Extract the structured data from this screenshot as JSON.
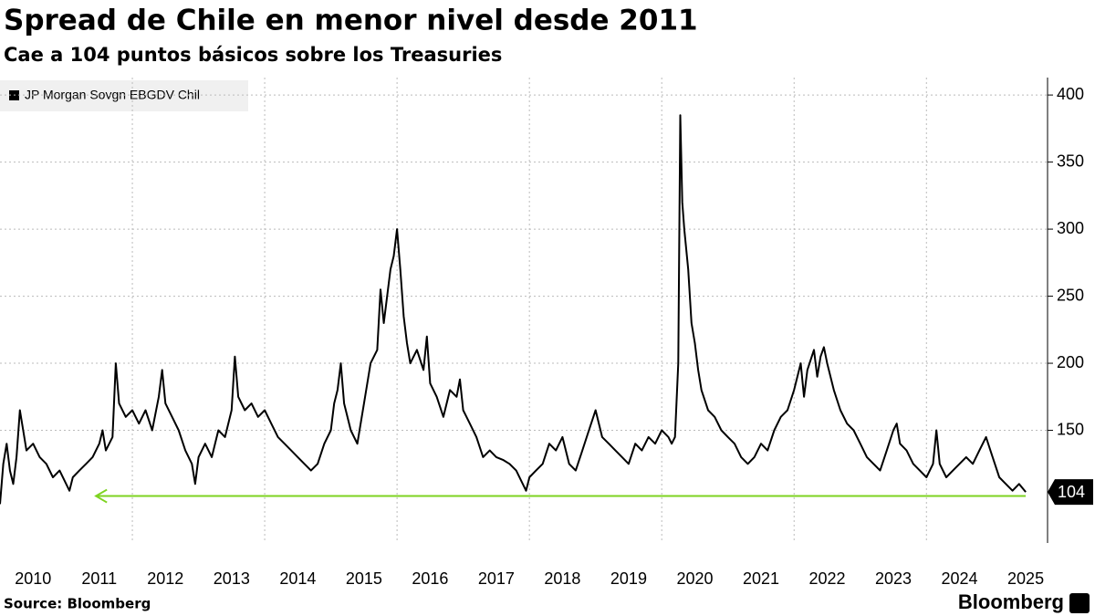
{
  "chart_data": {
    "type": "line",
    "title": "Spread de Chile en menor nivel desde 2011",
    "subtitle": "Cae a 104 puntos básicos sobre los Treasuries",
    "source": "Source: Bloomberg",
    "brand": "Bloomberg",
    "x": [
      2010.0,
      2010.05,
      2010.1,
      2010.15,
      2010.2,
      2010.25,
      2010.3,
      2010.35,
      2010.4,
      2010.5,
      2010.6,
      2010.7,
      2010.8,
      2010.9,
      2011.0,
      2011.05,
      2011.1,
      2011.2,
      2011.3,
      2011.4,
      2011.5,
      2011.55,
      2011.6,
      2011.7,
      2011.75,
      2011.8,
      2011.9,
      2012.0,
      2012.1,
      2012.2,
      2012.3,
      2012.4,
      2012.45,
      2012.5,
      2012.6,
      2012.7,
      2012.8,
      2012.9,
      2012.95,
      2013.0,
      2013.1,
      2013.2,
      2013.3,
      2013.4,
      2013.5,
      2013.55,
      2013.6,
      2013.7,
      2013.8,
      2013.9,
      2014.0,
      2014.1,
      2014.2,
      2014.3,
      2014.4,
      2014.5,
      2014.6,
      2014.7,
      2014.8,
      2014.9,
      2015.0,
      2015.05,
      2015.1,
      2015.15,
      2015.2,
      2015.3,
      2015.4,
      2015.5,
      2015.6,
      2015.7,
      2015.75,
      2015.8,
      2015.9,
      2015.95,
      2016.0,
      2016.05,
      2016.1,
      2016.15,
      2016.2,
      2016.3,
      2016.4,
      2016.45,
      2016.5,
      2016.6,
      2016.7,
      2016.8,
      2016.9,
      2016.95,
      2017.0,
      2017.1,
      2017.2,
      2017.3,
      2017.4,
      2017.5,
      2017.6,
      2017.7,
      2017.8,
      2017.9,
      2017.95,
      2018.0,
      2018.1,
      2018.2,
      2018.3,
      2018.4,
      2018.5,
      2018.6,
      2018.7,
      2018.8,
      2018.9,
      2019.0,
      2019.1,
      2019.2,
      2019.3,
      2019.4,
      2019.5,
      2019.6,
      2019.7,
      2019.8,
      2019.9,
      2020.0,
      2020.1,
      2020.15,
      2020.2,
      2020.25,
      2020.28,
      2020.31,
      2020.34,
      2020.4,
      2020.45,
      2020.5,
      2020.55,
      2020.6,
      2020.7,
      2020.8,
      2020.9,
      2021.0,
      2021.1,
      2021.2,
      2021.3,
      2021.4,
      2021.5,
      2021.6,
      2021.7,
      2021.8,
      2021.9,
      2022.0,
      2022.1,
      2022.15,
      2022.2,
      2022.3,
      2022.35,
      2022.4,
      2022.45,
      2022.5,
      2022.6,
      2022.7,
      2022.8,
      2022.9,
      2023.0,
      2023.1,
      2023.2,
      2023.3,
      2023.4,
      2023.5,
      2023.55,
      2023.6,
      2023.7,
      2023.8,
      2023.9,
      2024.0,
      2024.1,
      2024.15,
      2024.2,
      2024.3,
      2024.4,
      2024.5,
      2024.6,
      2024.7,
      2024.8,
      2024.9,
      2025.0,
      2025.1,
      2025.2,
      2025.3,
      2025.4,
      2025.5
    ],
    "series": [
      {
        "name": "JP Morgan Sovgn EBGDV Chil",
        "color": "#000000",
        "values": [
          95,
          125,
          140,
          120,
          110,
          130,
          165,
          150,
          135,
          140,
          130,
          125,
          115,
          120,
          110,
          105,
          115,
          120,
          125,
          130,
          140,
          150,
          135,
          145,
          200,
          170,
          160,
          165,
          155,
          165,
          150,
          175,
          195,
          170,
          160,
          150,
          135,
          125,
          110,
          130,
          140,
          130,
          150,
          145,
          165,
          205,
          175,
          165,
          170,
          160,
          165,
          155,
          145,
          140,
          135,
          130,
          125,
          120,
          125,
          140,
          150,
          170,
          180,
          200,
          170,
          150,
          140,
          170,
          200,
          210,
          255,
          230,
          270,
          280,
          300,
          270,
          235,
          215,
          200,
          210,
          195,
          220,
          185,
          175,
          160,
          180,
          175,
          188,
          165,
          155,
          145,
          130,
          135,
          130,
          128,
          125,
          120,
          110,
          105,
          115,
          120,
          125,
          140,
          135,
          145,
          125,
          120,
          135,
          150,
          165,
          145,
          140,
          135,
          130,
          125,
          140,
          135,
          145,
          140,
          150,
          145,
          140,
          145,
          200,
          385,
          320,
          300,
          270,
          230,
          215,
          195,
          180,
          165,
          160,
          150,
          145,
          140,
          130,
          125,
          130,
          140,
          135,
          150,
          160,
          165,
          180,
          200,
          175,
          195,
          210,
          190,
          205,
          212,
          200,
          180,
          165,
          155,
          150,
          140,
          130,
          125,
          120,
          135,
          150,
          155,
          140,
          135,
          125,
          120,
          115,
          125,
          150,
          125,
          115,
          120,
          125,
          130,
          125,
          135,
          145,
          130,
          115,
          110,
          105,
          110,
          104
        ]
      }
    ],
    "xlim": [
      2010,
      2025.83
    ],
    "xticks": [
      2010,
      2011,
      2012,
      2013,
      2014,
      2015,
      2016,
      2017,
      2018,
      2019,
      2020,
      2021,
      2022,
      2023,
      2024,
      2025
    ],
    "ylim": [
      66,
      413
    ],
    "yticks": [
      150,
      200,
      250,
      300,
      350,
      400
    ],
    "grid": true,
    "legend": "top-left",
    "reference_arrow": {
      "y": 101,
      "x_from": 2025.5,
      "x_to": 2011.45,
      "color": "#7ed321"
    }
  }
}
